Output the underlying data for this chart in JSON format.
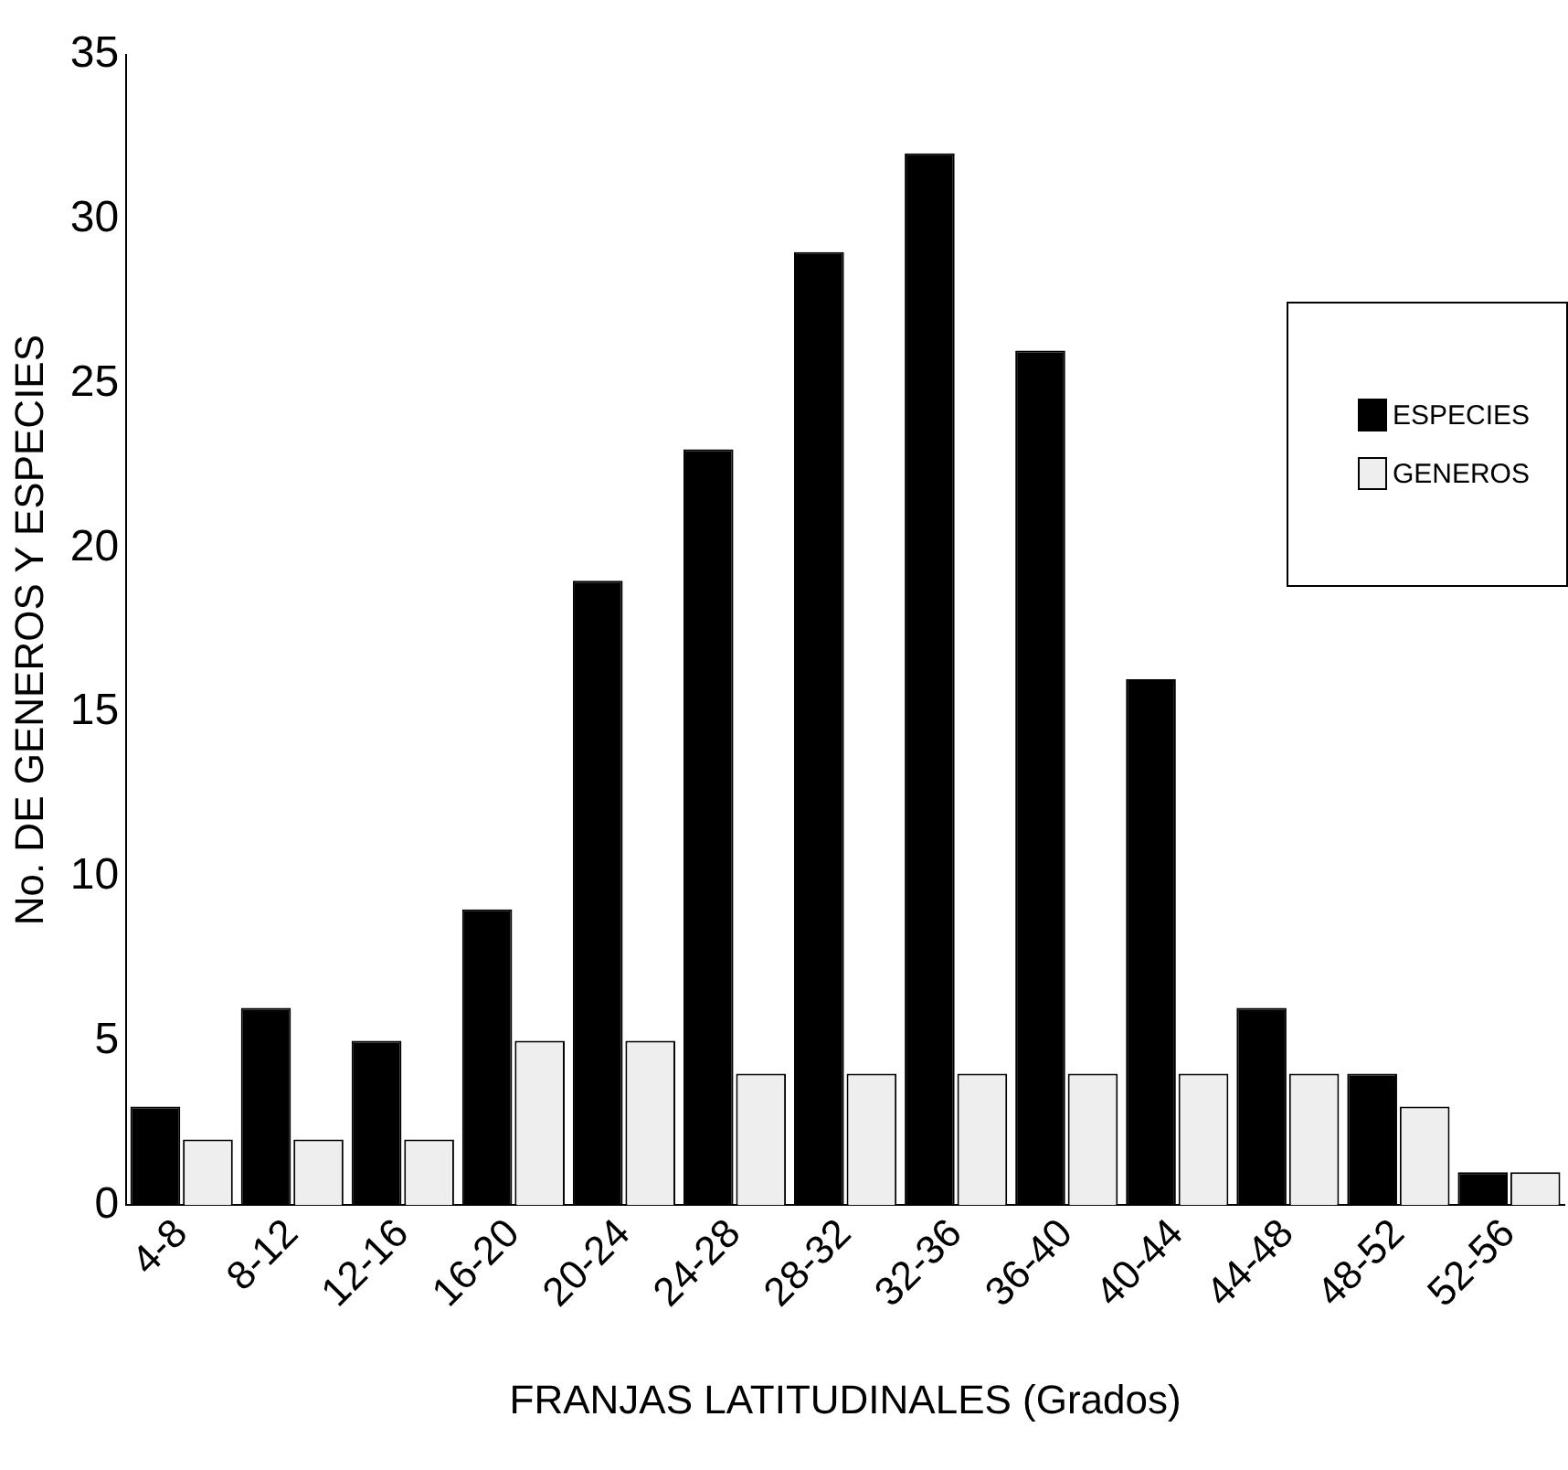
{
  "chart_data": {
    "type": "bar",
    "xlabel": "FRANJAS LATITUDINALES (Grados)",
    "ylabel": "No. DE GENEROS Y ESPECIES",
    "categories": [
      "4-8",
      "8-12",
      "12-16",
      "16-20",
      "20-24",
      "24-28",
      "28-32",
      "32-36",
      "36-40",
      "40-44",
      "44-48",
      "48-52",
      "52-56"
    ],
    "series": [
      {
        "name": "ESPECIES",
        "color": "#000000",
        "values": [
          3,
          6,
          5,
          9,
          19,
          23,
          29,
          32,
          26,
          16,
          6,
          4,
          1
        ]
      },
      {
        "name": "GENEROS",
        "color": "#eeeeee",
        "values": [
          2,
          2,
          2,
          5,
          5,
          4,
          4,
          4,
          4,
          4,
          4,
          3,
          1
        ]
      }
    ],
    "ylim": [
      0,
      35
    ],
    "yticks": [
      0,
      5,
      10,
      15,
      20,
      25,
      30,
      35
    ],
    "legend": "right"
  }
}
